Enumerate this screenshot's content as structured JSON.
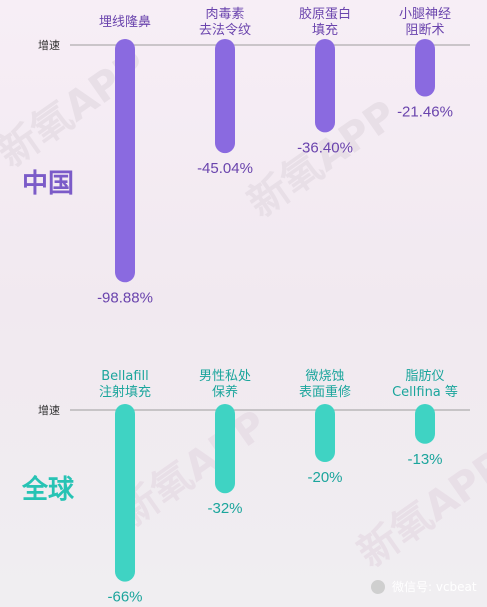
{
  "colors": {
    "china": "#8a6ae0",
    "global": "#3fd3c3",
    "china_text": "#6a44ad",
    "global_text": "#1ba59c"
  },
  "chart_data": [
    {
      "type": "bar",
      "region": "中国",
      "axis_label": "增速",
      "categories": [
        [
          "埋线隆鼻"
        ],
        [
          "肉毒素",
          "去法令纹"
        ],
        [
          "胶原蛋白",
          "填充"
        ],
        [
          "小腿神经",
          "阻断术"
        ]
      ],
      "values": [
        -98.88,
        -45.04,
        -36.4,
        -21.46
      ],
      "value_labels": [
        "-98.88%",
        "-45.04%",
        "-36.40%",
        "-21.46%"
      ]
    },
    {
      "type": "bar",
      "region": "全球",
      "axis_label": "增速",
      "categories": [
        [
          "Bellafill",
          "注射填充"
        ],
        [
          "男性私处",
          "保养"
        ],
        [
          "微烧蚀",
          "表面重修"
        ],
        [
          "脂肪仪",
          "Cellfina 等"
        ]
      ],
      "values": [
        -66,
        -32,
        -20,
        -13
      ],
      "value_labels": [
        "-66%",
        "-32%",
        "-20%",
        "-13%"
      ]
    }
  ],
  "watermark": "新氧APP",
  "credit": "微信号: vcbeat"
}
